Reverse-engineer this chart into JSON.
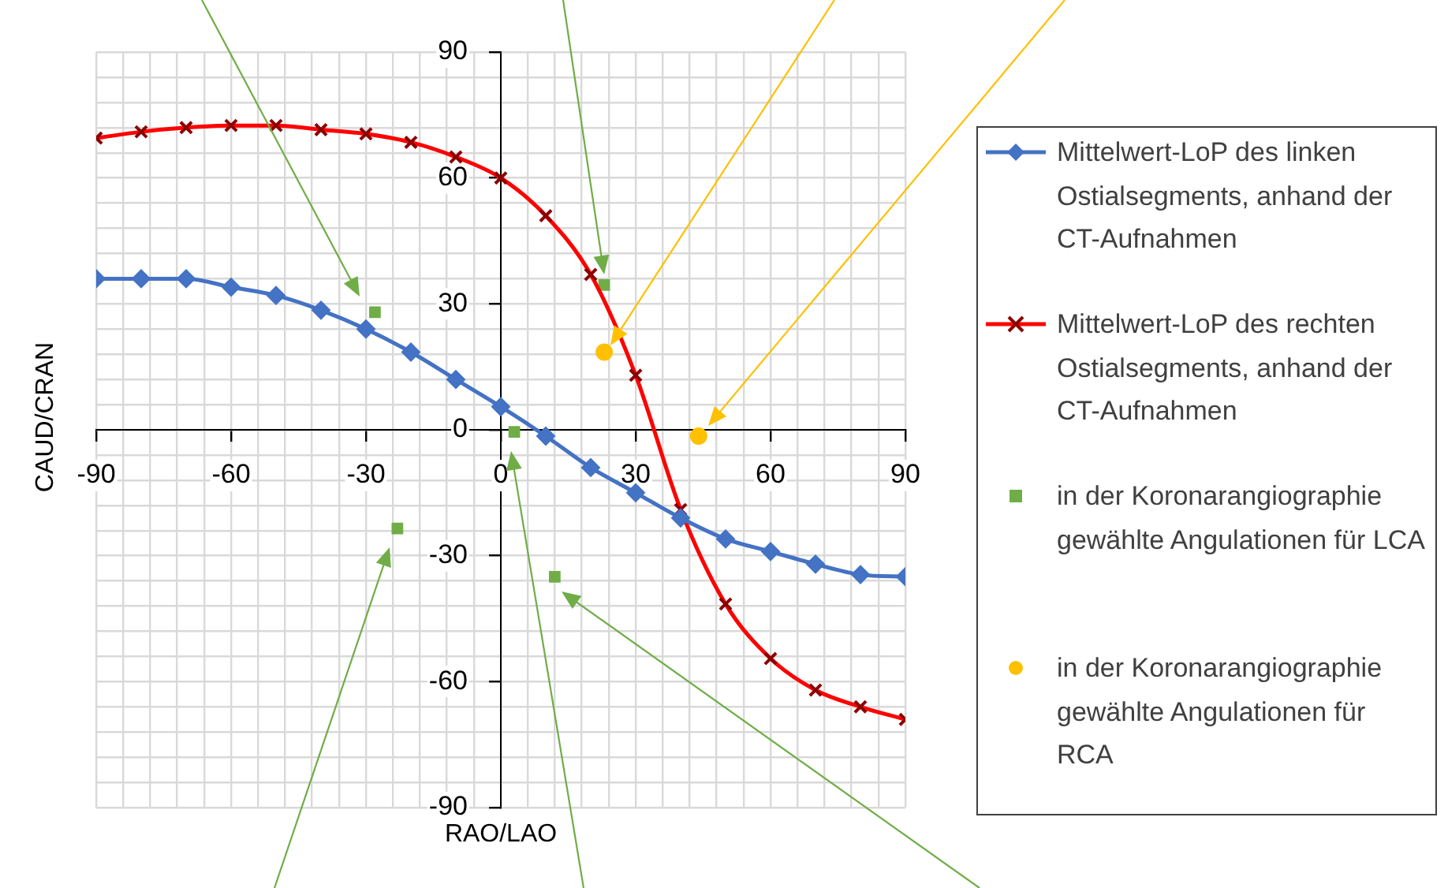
{
  "chart_data": {
    "type": "line",
    "xlabel": "RAO/LAO",
    "ylabel": "CAUD/CRAN",
    "x": [
      -90,
      -80,
      -70,
      -60,
      -50,
      -40,
      -30,
      -20,
      -10,
      0,
      10,
      20,
      30,
      40,
      50,
      60,
      70,
      80,
      90
    ],
    "xlim": [
      -90,
      90
    ],
    "ylim": [
      -90,
      90
    ],
    "xticks": [
      -90,
      {
        "value": -84,
        "label": null
      },
      {
        "value": -78,
        "label": null
      },
      {
        "value": -72,
        "label": null
      },
      {
        "value": -66,
        "label": null
      },
      -60,
      {
        "value": -54,
        "label": null
      },
      {
        "value": -48,
        "label": null
      },
      {
        "value": -42,
        "label": null
      },
      {
        "value": -36,
        "label": null
      },
      -30,
      {
        "value": -24,
        "label": null
      },
      {
        "value": -18,
        "label": null
      },
      {
        "value": -12,
        "label": null
      },
      {
        "value": -6,
        "label": null
      },
      0,
      {
        "value": 6,
        "label": null
      },
      {
        "value": 12,
        "label": null
      },
      {
        "value": 18,
        "label": null
      },
      {
        "value": 24,
        "label": null
      },
      30,
      {
        "value": 36,
        "label": null
      },
      {
        "value": 42,
        "label": null
      },
      {
        "value": 48,
        "label": null
      },
      {
        "value": 54,
        "label": null
      },
      60,
      {
        "value": 66,
        "label": null
      },
      {
        "value": 72,
        "label": null
      },
      {
        "value": 78,
        "label": null
      },
      {
        "value": 84,
        "label": null
      },
      90
    ],
    "yticks": [
      -90,
      {
        "value": -84,
        "label": null
      },
      {
        "value": -78,
        "label": null
      },
      {
        "value": -72,
        "label": null
      },
      {
        "value": -66,
        "label": null
      },
      -60,
      {
        "value": -54,
        "label": null
      },
      {
        "value": -48,
        "label": null
      },
      {
        "value": -42,
        "label": null
      },
      {
        "value": -36,
        "label": null
      },
      -30,
      {
        "value": -24,
        "label": null
      },
      {
        "value": -18,
        "label": null
      },
      {
        "value": -12,
        "label": null
      },
      {
        "value": -6,
        "label": null
      },
      0,
      {
        "value": 6,
        "label": null
      },
      {
        "value": 12,
        "label": null
      },
      {
        "value": 18,
        "label": null
      },
      {
        "value": 24,
        "label": null
      },
      30,
      {
        "value": 36,
        "label": null
      },
      {
        "value": 42,
        "label": null
      },
      {
        "value": 48,
        "label": null
      },
      {
        "value": 54,
        "label": null
      },
      60,
      {
        "value": 66,
        "label": null
      },
      {
        "value": 72,
        "label": null
      },
      {
        "value": 78,
        "label": null
      },
      {
        "value": 84,
        "label": null
      },
      90
    ],
    "grid": true,
    "legend": "right",
    "series": [
      {
        "name": "Mittelwert-LoP des linken Ostialsegments, anhand der CT-Aufnahmen",
        "color": "#4472c4",
        "marker": "diamond",
        "values": [
          36,
          36,
          36,
          34,
          32,
          28.5,
          24,
          18.5,
          12,
          5.5,
          -1.5,
          -9,
          -15,
          -21,
          -26,
          -29,
          -32,
          -34.5,
          -35
        ]
      },
      {
        "name": "Mittelwert-LoP des rechten Ostialsegments, anhand der CT-Aufnahmen",
        "color": "#ff0000",
        "colors": [
          "#8b0000",
          "#8b0000",
          "#8b0000",
          "#8b0000",
          "#8b0000",
          "#8b0000",
          "#8b0000",
          "#8b0000",
          "#8b0000",
          "#8b0000",
          "#8b0000",
          "#8b0000",
          "#8b0000",
          "#8b0000",
          "#8b0000",
          "#8b0000",
          "#8b0000",
          "#8b0000",
          "#8b0000"
        ],
        "marker": "cross",
        "values": [
          69.5,
          71,
          72,
          72.5,
          72.5,
          71.5,
          70.5,
          68.5,
          65,
          60,
          51,
          37,
          13,
          -19,
          -41.5,
          -54.5,
          -62,
          -66,
          -69
        ]
      },
      {
        "name": "in der Koronarangiographie gewählte Angulationen für LCA",
        "type": "scatter",
        "color": "#70ad47",
        "marker": "square",
        "x": [
          -28,
          23,
          3,
          -23,
          12
        ],
        "values": [
          28,
          34.5,
          -0.5,
          -23.5,
          -35
        ]
      },
      {
        "name": "in der Koronarangiographie gewählte Angulationen für RCA",
        "type": "scatter",
        "color": "#ffc000",
        "marker": "circle",
        "x": [
          23,
          44
        ],
        "values": [
          18.5,
          -1.5
        ]
      }
    ]
  }
}
